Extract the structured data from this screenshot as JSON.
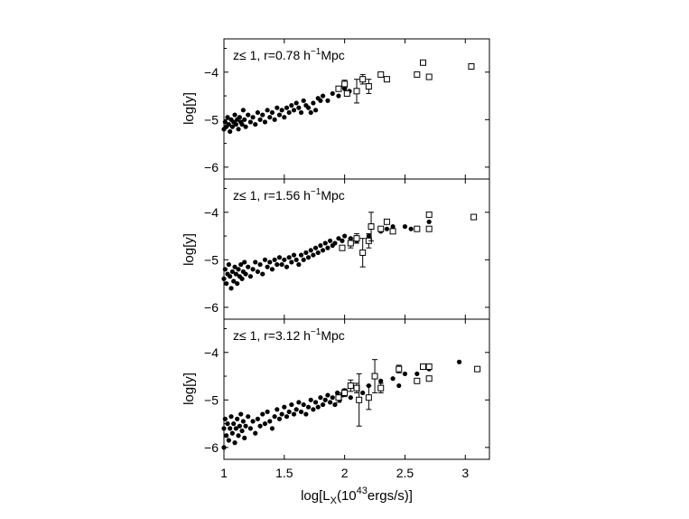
{
  "figure": {
    "xlabel_prefix": "log[L",
    "xlabel_sub": "X",
    "xlabel_mid": "(10",
    "xlabel_sup": "43",
    "xlabel_suffix": "ergs/s)]",
    "x_ticks": [
      "1",
      "1.5",
      "2",
      "2.5",
      "3"
    ],
    "xlim": [
      1,
      3.2
    ]
  },
  "chart_data": [
    {
      "type": "scatter",
      "label_prefix": "z≤ 1, r=0.78 h",
      "label_sup": "−1",
      "label_suffix": "Mpc",
      "ylabel": "log[y]",
      "y_ticks": [
        "-4",
        "-5",
        "-6"
      ],
      "ylim": [
        -6.25,
        -3.3
      ],
      "xlim": [
        1,
        3.2
      ],
      "dots": [
        [
          1.0,
          -5.2
        ],
        [
          1.01,
          -5.05
        ],
        [
          1.02,
          -5.15
        ],
        [
          1.03,
          -4.95
        ],
        [
          1.04,
          -5.1
        ],
        [
          1.05,
          -5.25
        ],
        [
          1.06,
          -5.0
        ],
        [
          1.07,
          -5.15
        ],
        [
          1.08,
          -5.05
        ],
        [
          1.09,
          -4.9
        ],
        [
          1.1,
          -5.1
        ],
        [
          1.11,
          -5.0
        ],
        [
          1.12,
          -5.2
        ],
        [
          1.13,
          -4.95
        ],
        [
          1.14,
          -5.05
        ],
        [
          1.15,
          -5.1
        ],
        [
          1.16,
          -4.8
        ],
        [
          1.17,
          -5.0
        ],
        [
          1.18,
          -5.15
        ],
        [
          1.2,
          -4.9
        ],
        [
          1.22,
          -5.05
        ],
        [
          1.24,
          -4.95
        ],
        [
          1.26,
          -5.1
        ],
        [
          1.28,
          -4.85
        ],
        [
          1.3,
          -5.0
        ],
        [
          1.32,
          -4.9
        ],
        [
          1.34,
          -5.05
        ],
        [
          1.36,
          -4.8
        ],
        [
          1.38,
          -4.95
        ],
        [
          1.4,
          -4.85
        ],
        [
          1.42,
          -5.0
        ],
        [
          1.44,
          -4.75
        ],
        [
          1.46,
          -4.9
        ],
        [
          1.48,
          -4.8
        ],
        [
          1.5,
          -4.95
        ],
        [
          1.52,
          -4.75
        ],
        [
          1.54,
          -4.85
        ],
        [
          1.56,
          -4.7
        ],
        [
          1.58,
          -4.8
        ],
        [
          1.6,
          -4.65
        ],
        [
          1.62,
          -4.75
        ],
        [
          1.64,
          -4.85
        ],
        [
          1.66,
          -4.6
        ],
        [
          1.68,
          -4.7
        ],
        [
          1.7,
          -4.75
        ],
        [
          1.72,
          -4.85
        ],
        [
          1.74,
          -4.65
        ],
        [
          1.76,
          -4.8
        ],
        [
          1.78,
          -4.55
        ],
        [
          1.8,
          -4.6
        ],
        [
          1.82,
          -4.5
        ],
        [
          1.86,
          -4.6
        ],
        [
          1.9,
          -4.45
        ],
        [
          1.95,
          -4.5
        ],
        [
          2.0,
          -4.35
        ],
        [
          2.04,
          -4.4
        ]
      ],
      "squares": [
        [
          1.95,
          -4.35,
          0.05
        ],
        [
          2.0,
          -4.25,
          0.08
        ],
        [
          2.02,
          -4.45,
          0.05
        ],
        [
          2.1,
          -4.4,
          0.25
        ],
        [
          2.15,
          -4.15,
          0.1
        ],
        [
          2.2,
          -4.3,
          0.15
        ],
        [
          2.3,
          -4.05,
          0.05
        ],
        [
          2.35,
          -4.15,
          0.05
        ],
        [
          2.6,
          -4.05,
          0.05
        ],
        [
          2.65,
          -3.8,
          0.04
        ],
        [
          2.7,
          -4.1,
          0.04
        ],
        [
          3.05,
          -3.88,
          0.04
        ]
      ]
    },
    {
      "type": "scatter",
      "label_prefix": "z≤ 1, r=1.56 h",
      "label_sup": "−1",
      "label_suffix": "Mpc",
      "ylabel": "log[y]",
      "y_ticks": [
        "-4",
        "-5",
        "-6"
      ],
      "ylim": [
        -6.25,
        -3.3
      ],
      "xlim": [
        1,
        3.2
      ],
      "dots": [
        [
          1.0,
          -5.4
        ],
        [
          1.01,
          -5.2
        ],
        [
          1.02,
          -5.5
        ],
        [
          1.03,
          -5.3
        ],
        [
          1.04,
          -5.1
        ],
        [
          1.05,
          -5.35
        ],
        [
          1.06,
          -5.6
        ],
        [
          1.07,
          -5.25
        ],
        [
          1.08,
          -5.45
        ],
        [
          1.09,
          -5.15
        ],
        [
          1.1,
          -5.3
        ],
        [
          1.11,
          -5.5
        ],
        [
          1.12,
          -5.2
        ],
        [
          1.13,
          -5.35
        ],
        [
          1.14,
          -5.1
        ],
        [
          1.15,
          -5.4
        ],
        [
          1.16,
          -5.25
        ],
        [
          1.17,
          -5.05
        ],
        [
          1.18,
          -5.3
        ],
        [
          1.2,
          -5.15
        ],
        [
          1.22,
          -5.35
        ],
        [
          1.24,
          -5.2
        ],
        [
          1.26,
          -5.05
        ],
        [
          1.28,
          -5.25
        ],
        [
          1.3,
          -5.1
        ],
        [
          1.32,
          -5.3
        ],
        [
          1.34,
          -5.0
        ],
        [
          1.36,
          -5.15
        ],
        [
          1.38,
          -5.05
        ],
        [
          1.4,
          -5.2
        ],
        [
          1.42,
          -5.0
        ],
        [
          1.44,
          -5.1
        ],
        [
          1.46,
          -4.95
        ],
        [
          1.48,
          -5.1
        ],
        [
          1.5,
          -5.0
        ],
        [
          1.52,
          -5.15
        ],
        [
          1.54,
          -4.95
        ],
        [
          1.56,
          -5.05
        ],
        [
          1.58,
          -4.9
        ],
        [
          1.6,
          -5.0
        ],
        [
          1.62,
          -5.1
        ],
        [
          1.64,
          -4.9
        ],
        [
          1.66,
          -5.0
        ],
        [
          1.68,
          -4.85
        ],
        [
          1.7,
          -4.95
        ],
        [
          1.72,
          -4.8
        ],
        [
          1.74,
          -4.9
        ],
        [
          1.76,
          -4.75
        ],
        [
          1.78,
          -4.85
        ],
        [
          1.8,
          -4.7
        ],
        [
          1.82,
          -4.8
        ],
        [
          1.84,
          -4.65
        ],
        [
          1.86,
          -4.75
        ],
        [
          1.88,
          -4.6
        ],
        [
          1.9,
          -4.7
        ],
        [
          1.92,
          -4.65
        ],
        [
          1.95,
          -4.55
        ],
        [
          1.98,
          -4.6
        ],
        [
          2.0,
          -4.5
        ],
        [
          2.05,
          -4.55
        ],
        [
          2.1,
          -4.6
        ],
        [
          2.2,
          -4.5
        ],
        [
          2.3,
          -4.4
        ],
        [
          2.35,
          -4.35
        ],
        [
          2.4,
          -4.3
        ],
        [
          2.5,
          -4.3
        ],
        [
          2.55,
          -4.35
        ],
        [
          2.7,
          -4.2
        ]
      ],
      "squares": [
        [
          1.98,
          -4.75,
          0.05
        ],
        [
          2.05,
          -4.65,
          0.1
        ],
        [
          2.1,
          -4.55,
          0.1
        ],
        [
          2.15,
          -4.85,
          0.3
        ],
        [
          2.2,
          -4.6,
          0.15
        ],
        [
          2.22,
          -4.3,
          0.3
        ],
        [
          2.3,
          -4.35,
          0.05
        ],
        [
          2.35,
          -4.2,
          0.05
        ],
        [
          2.4,
          -4.4,
          0.04
        ],
        [
          2.6,
          -4.35,
          0.05
        ],
        [
          2.7,
          -4.05,
          0.04
        ],
        [
          2.7,
          -4.35,
          0.04
        ],
        [
          3.07,
          -4.1,
          0.04
        ]
      ]
    },
    {
      "type": "scatter",
      "label_prefix": "z≤ 1, r=3.12 h",
      "label_sup": "−1",
      "label_suffix": "Mpc",
      "ylabel": "log[y]",
      "y_ticks": [
        "-4",
        "-5",
        "-6"
      ],
      "ylim": [
        -6.25,
        -3.3
      ],
      "xlim": [
        1,
        3.2
      ],
      "dots": [
        [
          1.0,
          -5.6
        ],
        [
          1.0,
          -6.0
        ],
        [
          1.01,
          -5.4
        ],
        [
          1.02,
          -5.75
        ],
        [
          1.03,
          -5.5
        ],
        [
          1.04,
          -5.85
        ],
        [
          1.05,
          -5.6
        ],
        [
          1.06,
          -5.35
        ],
        [
          1.07,
          -5.7
        ],
        [
          1.08,
          -5.5
        ],
        [
          1.09,
          -5.9
        ],
        [
          1.1,
          -5.6
        ],
        [
          1.11,
          -5.4
        ],
        [
          1.12,
          -5.75
        ],
        [
          1.13,
          -5.55
        ],
        [
          1.14,
          -5.3
        ],
        [
          1.15,
          -5.65
        ],
        [
          1.16,
          -5.45
        ],
        [
          1.17,
          -5.8
        ],
        [
          1.18,
          -5.55
        ],
        [
          1.2,
          -5.35
        ],
        [
          1.22,
          -5.6
        ],
        [
          1.24,
          -5.45
        ],
        [
          1.26,
          -5.7
        ],
        [
          1.28,
          -5.4
        ],
        [
          1.3,
          -5.55
        ],
        [
          1.32,
          -5.3
        ],
        [
          1.34,
          -5.5
        ],
        [
          1.36,
          -5.25
        ],
        [
          1.38,
          -5.45
        ],
        [
          1.4,
          -5.6
        ],
        [
          1.42,
          -5.35
        ],
        [
          1.44,
          -5.2
        ],
        [
          1.46,
          -5.4
        ],
        [
          1.48,
          -5.3
        ],
        [
          1.5,
          -5.15
        ],
        [
          1.52,
          -5.35
        ],
        [
          1.54,
          -5.25
        ],
        [
          1.56,
          -5.1
        ],
        [
          1.58,
          -5.3
        ],
        [
          1.6,
          -5.2
        ],
        [
          1.62,
          -5.05
        ],
        [
          1.64,
          -5.25
        ],
        [
          1.66,
          -5.1
        ],
        [
          1.68,
          -5.3
        ],
        [
          1.7,
          -5.15
        ],
        [
          1.72,
          -5.0
        ],
        [
          1.74,
          -5.2
        ],
        [
          1.76,
          -5.05
        ],
        [
          1.78,
          -5.15
        ],
        [
          1.8,
          -4.95
        ],
        [
          1.82,
          -5.1
        ],
        [
          1.84,
          -5.0
        ],
        [
          1.86,
          -4.9
        ],
        [
          1.88,
          -5.05
        ],
        [
          1.9,
          -4.95
        ],
        [
          1.92,
          -5.1
        ],
        [
          1.94,
          -4.85
        ],
        [
          1.96,
          -5.0
        ],
        [
          1.98,
          -4.9
        ],
        [
          2.0,
          -4.8
        ],
        [
          2.05,
          -4.95
        ],
        [
          2.1,
          -4.75
        ],
        [
          2.15,
          -4.85
        ],
        [
          2.2,
          -4.7
        ],
        [
          2.3,
          -4.6
        ],
        [
          2.4,
          -4.55
        ],
        [
          2.45,
          -4.7
        ],
        [
          2.5,
          -4.45
        ],
        [
          2.6,
          -4.45
        ],
        [
          2.7,
          -4.35
        ],
        [
          2.95,
          -4.2
        ]
      ],
      "squares": [
        [
          1.95,
          -4.95,
          0.1
        ],
        [
          2.0,
          -4.85,
          0.08
        ],
        [
          2.05,
          -4.7,
          0.12
        ],
        [
          2.1,
          -4.75,
          0.1
        ],
        [
          2.12,
          -5.0,
          0.55
        ],
        [
          2.2,
          -4.95,
          0.25
        ],
        [
          2.25,
          -4.5,
          0.35
        ],
        [
          2.3,
          -4.75,
          0.1
        ],
        [
          2.45,
          -4.35,
          0.08
        ],
        [
          2.6,
          -4.6,
          0.05
        ],
        [
          2.65,
          -4.3,
          0.04
        ],
        [
          2.7,
          -4.3,
          0.04
        ],
        [
          2.7,
          -4.55,
          0.04
        ],
        [
          3.1,
          -4.35,
          0.05
        ]
      ]
    }
  ]
}
